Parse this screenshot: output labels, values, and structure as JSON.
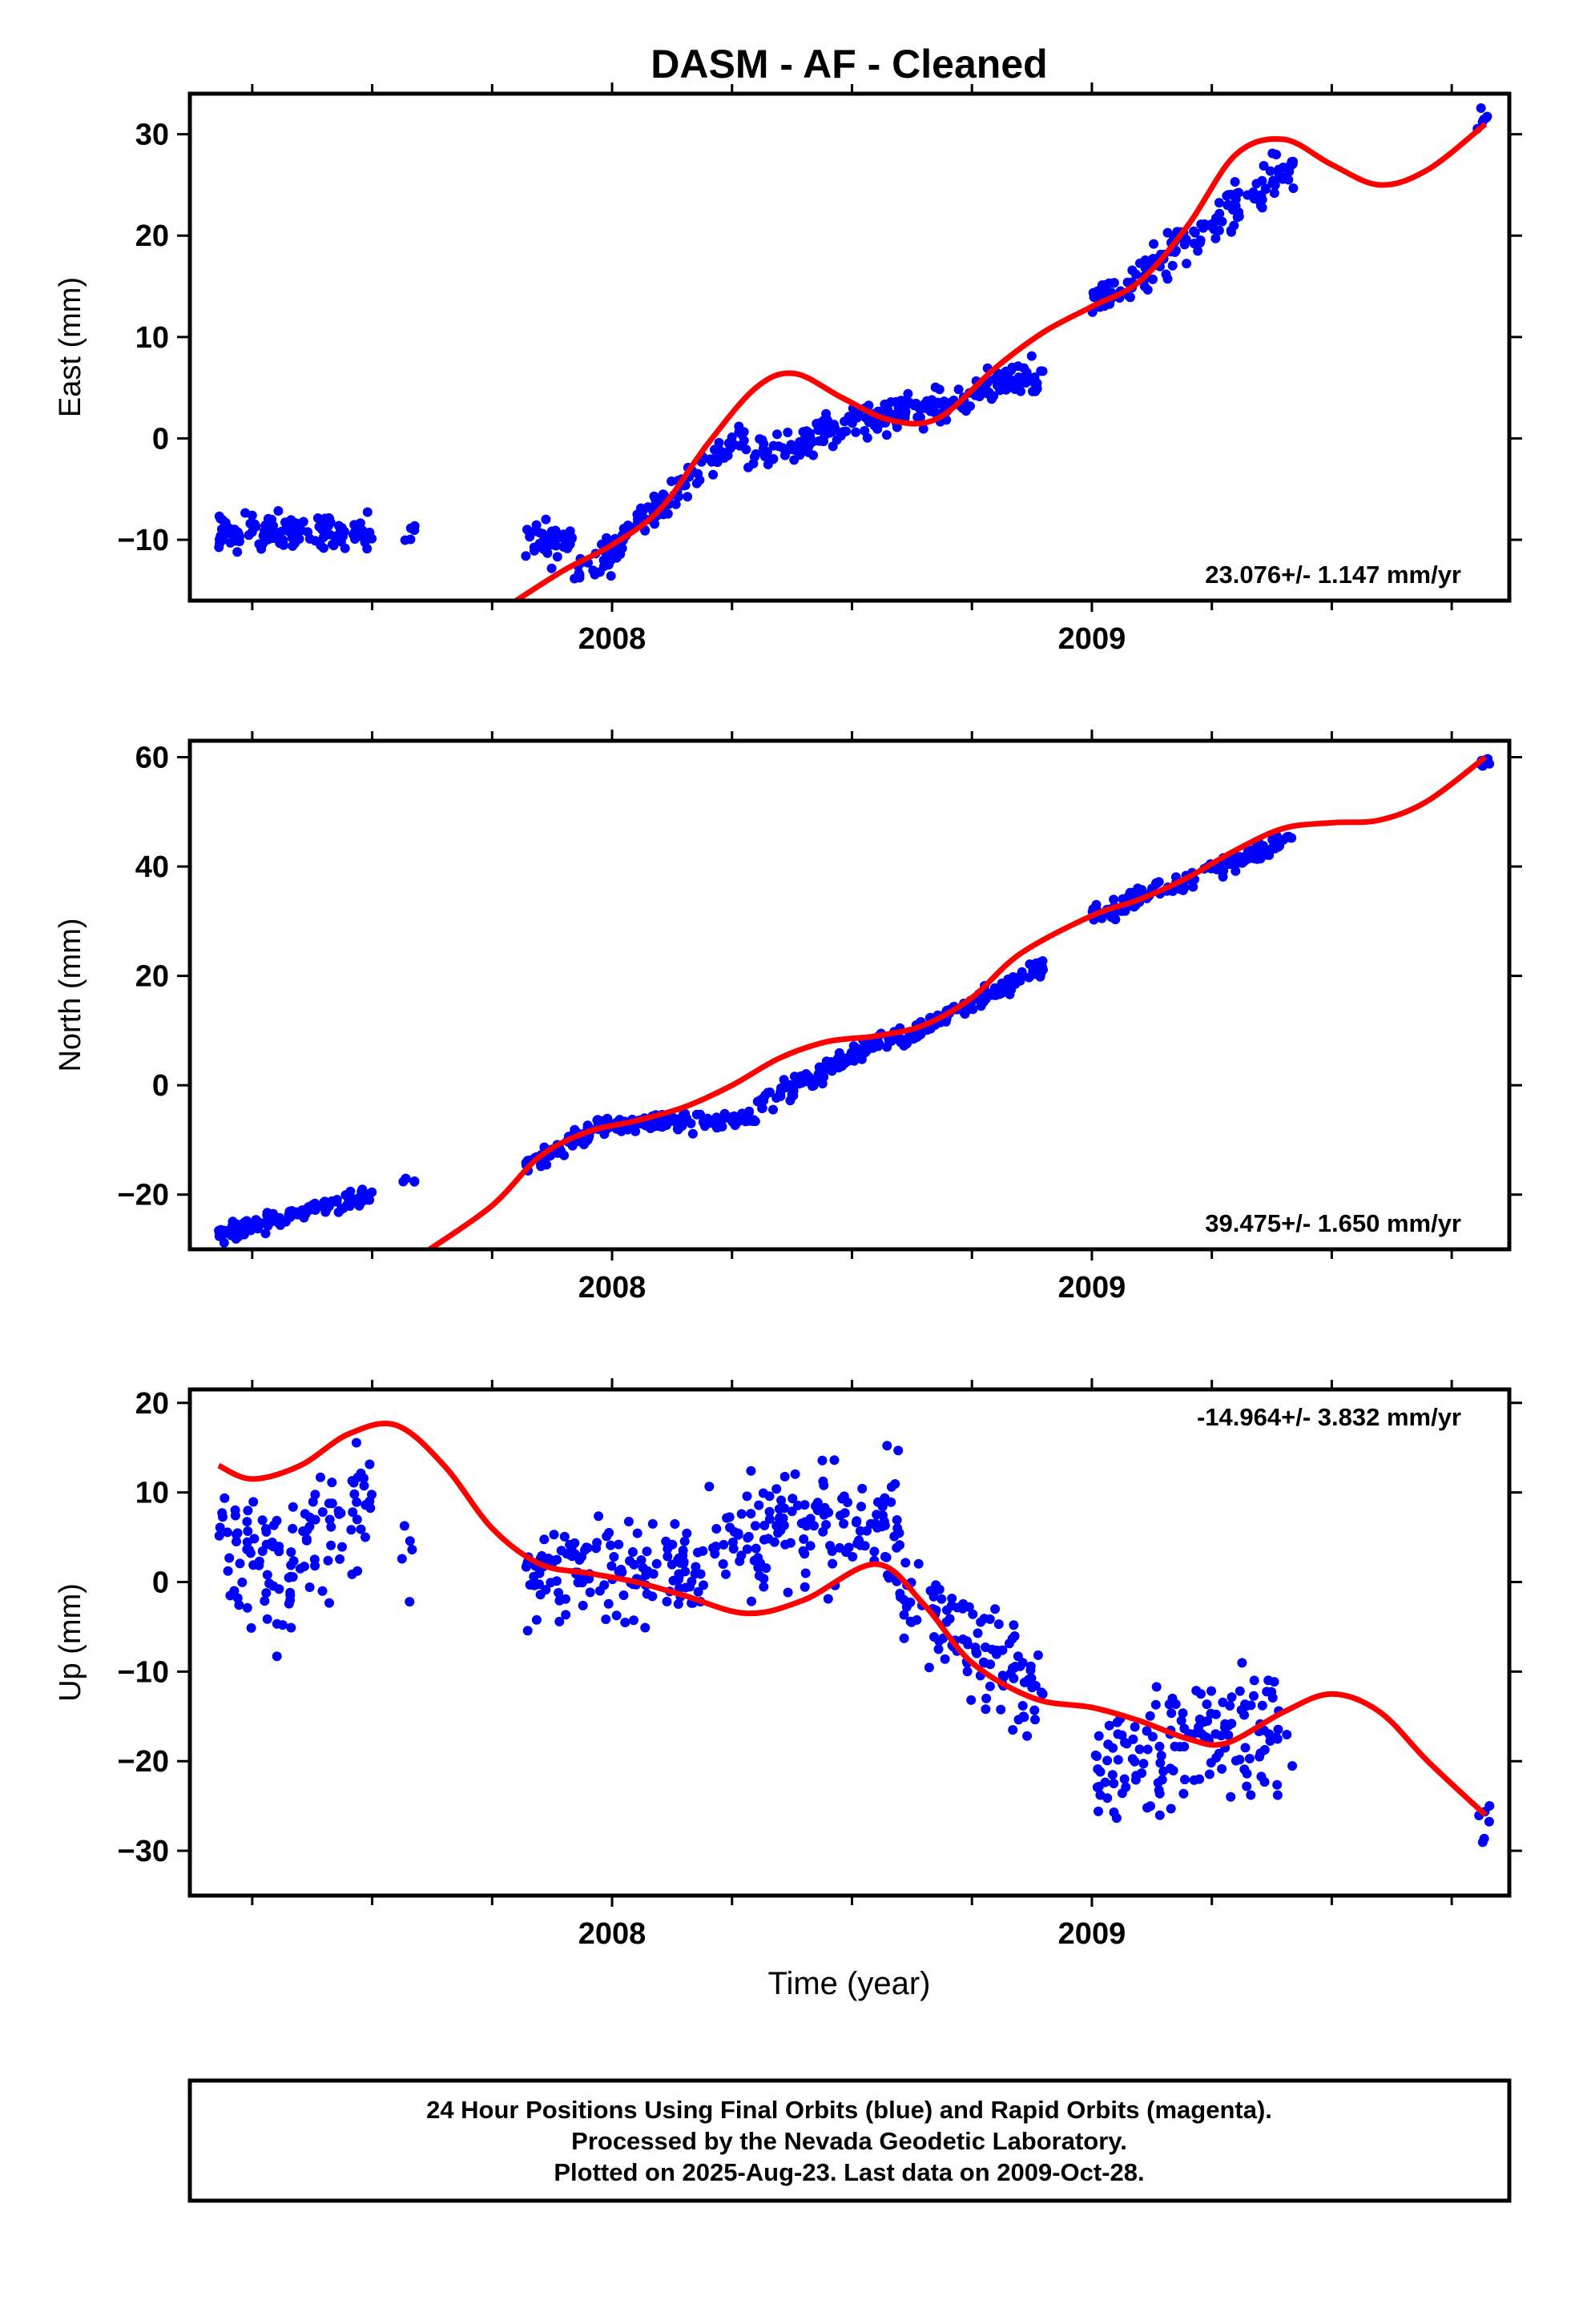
{
  "title": "DASM  - AF - Cleaned",
  "xlabel": "Time (year)",
  "caption": [
    "24 Hour Positions Using Final Orbits (blue) and Rapid Orbits (magenta).",
    "Processed by the Nevada Geodetic Laboratory.",
    "Plotted on 2025-Aug-23. Last data on 2009-Oct-28."
  ],
  "colors": {
    "final_orbits": "#0000ff",
    "model": "#ff0000"
  },
  "chart_data": [
    {
      "type": "scatter",
      "ylabel": "East (mm)",
      "rate_label": "23.076+/- 1.147 mm/yr",
      "rate_position": "bottom-right",
      "xlim": [
        2007.12,
        2009.87
      ],
      "ylim": [
        -16,
        34
      ],
      "x_ticks": [
        "2008",
        "2009"
      ],
      "y_ticks": [
        -10,
        0,
        10,
        20,
        30
      ],
      "y_tick_labels": [
        "−10",
        "0",
        "10",
        "20",
        "30"
      ],
      "segments": [
        {
          "from": 2007.18,
          "to": 2007.5,
          "mid": -9.3,
          "slope": 0,
          "scatter": 1.3,
          "n": 120
        },
        {
          "from": 2007.56,
          "to": 2007.59,
          "mid": -9.2,
          "slope": 0,
          "scatter": 1.0,
          "n": 5
        },
        {
          "from": 2007.82,
          "to": 2007.92,
          "mid": -10,
          "slope": 0,
          "scatter": 1.3,
          "n": 45
        },
        {
          "from": 2007.92,
          "to": 2008.02,
          "mid": -12,
          "slope": 25,
          "scatter": 1.3,
          "n": 40
        },
        {
          "from": 2008.02,
          "to": 2008.28,
          "mid": -4.5,
          "slope": 38,
          "scatter": 1.2,
          "n": 100
        },
        {
          "from": 2008.28,
          "to": 2008.62,
          "mid": 0.5,
          "slope": 14,
          "scatter": 1.2,
          "n": 130
        },
        {
          "from": 2008.62,
          "to": 2008.9,
          "mid": 4.5,
          "slope": 14,
          "scatter": 1.3,
          "n": 100
        },
        {
          "from": 2009.0,
          "to": 2009.42,
          "mid": 20,
          "slope": 33,
          "scatter": 1.4,
          "n": 150
        },
        {
          "from": 2009.8,
          "to": 2009.83,
          "mid": 31,
          "slope": 0,
          "scatter": 1.2,
          "n": 6
        }
      ],
      "model": {
        "x": [
          2007.8,
          2007.9,
          2008.0,
          2008.1,
          2008.2,
          2008.3,
          2008.38,
          2008.48,
          2008.58,
          2008.68,
          2008.8,
          2008.9,
          2009.0,
          2009.1,
          2009.2,
          2009.3,
          2009.4,
          2009.5,
          2009.6,
          2009.7,
          2009.82
        ],
        "y": [
          -16,
          -13,
          -10.5,
          -7,
          -0.5,
          5,
          6.4,
          4,
          1.8,
          2,
          7,
          10.5,
          13,
          15.5,
          21,
          28,
          29.5,
          27,
          25,
          26.5,
          31
        ]
      }
    },
    {
      "type": "scatter",
      "ylabel": "North (mm)",
      "rate_label": "39.475+/- 1.650 mm/yr",
      "rate_position": "bottom-right",
      "xlim": [
        2007.12,
        2009.87
      ],
      "ylim": [
        -30,
        63
      ],
      "x_ticks": [
        "2008",
        "2009"
      ],
      "y_ticks": [
        -20,
        0,
        20,
        40,
        60
      ],
      "y_tick_labels": [
        "−20",
        "0",
        "20",
        "40",
        "60"
      ],
      "segments": [
        {
          "from": 2007.18,
          "to": 2007.5,
          "mid": -23.5,
          "slope": 23,
          "scatter": 1.2,
          "n": 120
        },
        {
          "from": 2007.56,
          "to": 2007.59,
          "mid": -18,
          "slope": 0,
          "scatter": 1.0,
          "n": 5
        },
        {
          "from": 2007.82,
          "to": 2007.96,
          "mid": -11.5,
          "slope": 45,
          "scatter": 1.2,
          "n": 60
        },
        {
          "from": 2007.96,
          "to": 2008.3,
          "mid": -6.5,
          "slope": 3,
          "scatter": 1.1,
          "n": 120
        },
        {
          "from": 2008.3,
          "to": 2008.6,
          "mid": 3,
          "slope": 45,
          "scatter": 1.2,
          "n": 120
        },
        {
          "from": 2008.6,
          "to": 2008.9,
          "mid": 15,
          "slope": 45,
          "scatter": 1.2,
          "n": 110
        },
        {
          "from": 2009.0,
          "to": 2009.42,
          "mid": 38,
          "slope": 35,
          "scatter": 1.3,
          "n": 150
        },
        {
          "from": 2009.8,
          "to": 2009.83,
          "mid": 59,
          "slope": 0,
          "scatter": 1.3,
          "n": 6
        }
      ],
      "model": {
        "x": [
          2007.62,
          2007.75,
          2007.85,
          2007.95,
          2008.05,
          2008.15,
          2008.25,
          2008.35,
          2008.45,
          2008.55,
          2008.65,
          2008.75,
          2008.85,
          2009.0,
          2009.1,
          2009.2,
          2009.3,
          2009.4,
          2009.5,
          2009.6,
          2009.7,
          2009.82
        ],
        "y": [
          -30,
          -22,
          -13,
          -8.5,
          -6.5,
          -4,
          0,
          5,
          8,
          9,
          11,
          16,
          24,
          31,
          34,
          38,
          43,
          47,
          48,
          48.5,
          52,
          60
        ]
      }
    },
    {
      "type": "scatter",
      "ylabel": "Up (mm)",
      "rate_label": "-14.964+/- 3.832 mm/yr",
      "rate_position": "top-right",
      "xlim": [
        2007.12,
        2009.87
      ],
      "ylim": [
        -35,
        21.5
      ],
      "x_ticks": [
        "2008",
        "2009"
      ],
      "y_ticks": [
        -30,
        -20,
        -10,
        0,
        10,
        20
      ],
      "y_tick_labels": [
        "−30",
        "−20",
        "−10",
        "0",
        "10",
        "20"
      ],
      "segments": [
        {
          "from": 2007.18,
          "to": 2007.33,
          "mid": 3,
          "slope": -25,
          "scatter": 5.5,
          "n": 60
        },
        {
          "from": 2007.33,
          "to": 2007.5,
          "mid": 6,
          "slope": 45,
          "scatter": 5.0,
          "n": 60
        },
        {
          "from": 2007.56,
          "to": 2007.59,
          "mid": 3,
          "slope": 0,
          "scatter": 3.5,
          "n": 5
        },
        {
          "from": 2007.82,
          "to": 2008.2,
          "mid": 1.5,
          "slope": 0,
          "scatter": 3.8,
          "n": 140
        },
        {
          "from": 2008.2,
          "to": 2008.6,
          "mid": 6,
          "slope": 5,
          "scatter": 4.5,
          "n": 150
        },
        {
          "from": 2008.6,
          "to": 2008.9,
          "mid": -7,
          "slope": -40,
          "scatter": 4.0,
          "n": 110
        },
        {
          "from": 2009.0,
          "to": 2009.42,
          "mid": -18,
          "slope": 8,
          "scatter": 4.5,
          "n": 150
        },
        {
          "from": 2009.8,
          "to": 2009.83,
          "mid": -27,
          "slope": 0,
          "scatter": 3.5,
          "n": 6
        }
      ],
      "model": {
        "x": [
          2007.18,
          2007.25,
          2007.35,
          2007.45,
          2007.55,
          2007.65,
          2007.75,
          2007.85,
          2007.95,
          2008.05,
          2008.15,
          2008.28,
          2008.4,
          2008.55,
          2008.65,
          2008.75,
          2008.88,
          2009.0,
          2009.1,
          2009.2,
          2009.28,
          2009.4,
          2009.5,
          2009.6,
          2009.7,
          2009.82
        ],
        "y": [
          13,
          11.5,
          13,
          16.5,
          17.5,
          13,
          6,
          2,
          1,
          0,
          -1.5,
          -3.5,
          -2,
          2,
          -2.5,
          -9,
          -13,
          -14,
          -15.5,
          -17.5,
          -18,
          -14.5,
          -12.5,
          -14.5,
          -20,
          -26
        ]
      }
    }
  ]
}
